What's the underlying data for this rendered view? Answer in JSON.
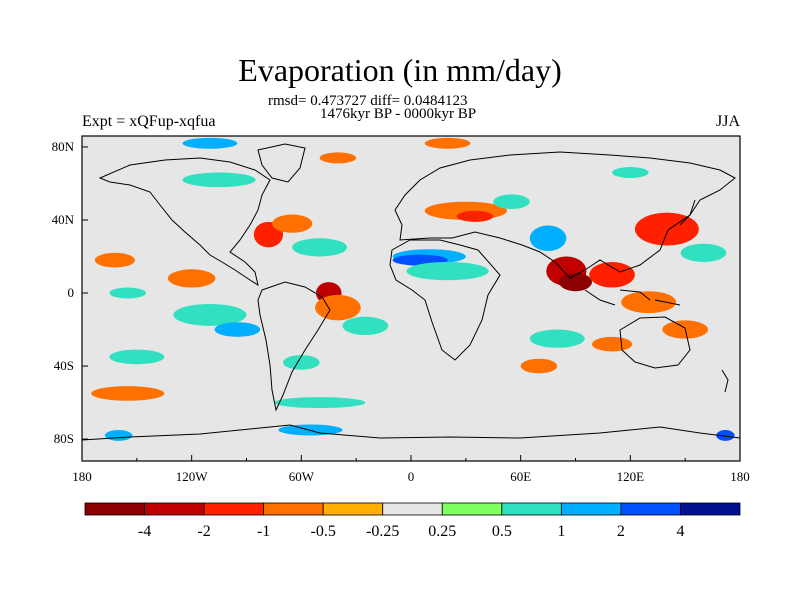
{
  "title": "Evaporation (in mm/day)",
  "stats_line": "rmsd= 0.473727 diff= 0.0484123",
  "period_line": "1476kyr BP - 0000kyr BP",
  "experiment_label": "Expt = xQFup-xqfua",
  "season_label": "JJA",
  "map": {
    "projection": "cylindrical equidistant",
    "lon_ticks": [
      "180",
      "120W",
      "60W",
      "0",
      "60E",
      "120E",
      "180"
    ],
    "lat_ticks": [
      "80N",
      "40N",
      "0",
      "40S",
      "80S"
    ],
    "ocean_neutral_color": "#e6e6e6",
    "coastline_color": "#000000"
  },
  "colorbar": {
    "boundaries": [
      "-4",
      "-2",
      "-1",
      "-0.5",
      "-0.25",
      "0.25",
      "0.5",
      "1",
      "2",
      "4"
    ],
    "colors": [
      "#8b0000",
      "#c00000",
      "#ff2000",
      "#ff7000",
      "#ffb000",
      "#e6e6e6",
      "#80ff60",
      "#30e0c0",
      "#00b0ff",
      "#0050ff",
      "#00108f"
    ]
  },
  "field_patches": [
    {
      "lon": -162,
      "lat": 18,
      "w": 22,
      "h": 8,
      "level": "-0.5"
    },
    {
      "lon": -120,
      "lat": 8,
      "w": 26,
      "h": 10,
      "level": "-0.5"
    },
    {
      "lon": -155,
      "lat": 0,
      "w": 20,
      "h": 6,
      "level": "0.5"
    },
    {
      "lon": -110,
      "lat": -12,
      "w": 40,
      "h": 12,
      "level": "0.5"
    },
    {
      "lon": -95,
      "lat": -20,
      "w": 25,
      "h": 8,
      "level": "1"
    },
    {
      "lon": -45,
      "lat": 0,
      "w": 14,
      "h": 12,
      "level": "-2"
    },
    {
      "lon": -40,
      "lat": -8,
      "w": 25,
      "h": 14,
      "level": "-0.5"
    },
    {
      "lon": -25,
      "lat": -18,
      "w": 25,
      "h": 10,
      "level": "0.5"
    },
    {
      "lon": -78,
      "lat": 32,
      "w": 16,
      "h": 14,
      "level": "-1"
    },
    {
      "lon": -65,
      "lat": 38,
      "w": 22,
      "h": 10,
      "level": "-0.5"
    },
    {
      "lon": -50,
      "lat": 25,
      "w": 30,
      "h": 10,
      "level": "0.5"
    },
    {
      "lon": 10,
      "lat": 20,
      "w": 40,
      "h": 8,
      "level": "1"
    },
    {
      "lon": 5,
      "lat": 18,
      "w": 30,
      "h": 6,
      "level": "2"
    },
    {
      "lon": 20,
      "lat": 12,
      "w": 45,
      "h": 10,
      "level": "0.5"
    },
    {
      "lon": 30,
      "lat": 45,
      "w": 45,
      "h": 10,
      "level": "-0.5"
    },
    {
      "lon": 35,
      "lat": 42,
      "w": 20,
      "h": 6,
      "level": "-1"
    },
    {
      "lon": 55,
      "lat": 50,
      "w": 20,
      "h": 8,
      "level": "0.5"
    },
    {
      "lon": 75,
      "lat": 30,
      "w": 20,
      "h": 14,
      "level": "1"
    },
    {
      "lon": 85,
      "lat": 12,
      "w": 22,
      "h": 16,
      "level": "-2"
    },
    {
      "lon": 90,
      "lat": 6,
      "w": 18,
      "h": 10,
      "level": "-4"
    },
    {
      "lon": 110,
      "lat": 10,
      "w": 25,
      "h": 14,
      "level": "-1"
    },
    {
      "lon": 130,
      "lat": -5,
      "w": 30,
      "h": 12,
      "level": "-0.5"
    },
    {
      "lon": 140,
      "lat": 35,
      "w": 35,
      "h": 18,
      "level": "-1"
    },
    {
      "lon": 160,
      "lat": 22,
      "w": 25,
      "h": 10,
      "level": "0.5"
    },
    {
      "lon": 80,
      "lat": -25,
      "w": 30,
      "h": 10,
      "level": "0.5"
    },
    {
      "lon": 110,
      "lat": -28,
      "w": 22,
      "h": 8,
      "level": "-0.5"
    },
    {
      "lon": 150,
      "lat": -20,
      "w": 25,
      "h": 10,
      "level": "-0.5"
    },
    {
      "lon": 70,
      "lat": -40,
      "w": 20,
      "h": 8,
      "level": "-0.5"
    },
    {
      "lon": -150,
      "lat": -35,
      "w": 30,
      "h": 8,
      "level": "0.5"
    },
    {
      "lon": -155,
      "lat": -55,
      "w": 40,
      "h": 8,
      "level": "-0.5"
    },
    {
      "lon": -50,
      "lat": -60,
      "w": 50,
      "h": 6,
      "level": "0.5"
    },
    {
      "lon": -55,
      "lat": -75,
      "w": 35,
      "h": 6,
      "level": "1"
    },
    {
      "lon": -160,
      "lat": -78,
      "w": 15,
      "h": 6,
      "level": "1"
    },
    {
      "lon": 172,
      "lat": -78,
      "w": 10,
      "h": 6,
      "level": "2"
    },
    {
      "lon": -105,
      "lat": 62,
      "w": 40,
      "h": 8,
      "level": "0.5"
    },
    {
      "lon": -40,
      "lat": 74,
      "w": 20,
      "h": 6,
      "level": "-0.5"
    },
    {
      "lon": -110,
      "lat": 82,
      "w": 30,
      "h": 6,
      "level": "1"
    },
    {
      "lon": 20,
      "lat": 82,
      "w": 25,
      "h": 6,
      "level": "-0.5"
    },
    {
      "lon": 120,
      "lat": 66,
      "w": 20,
      "h": 6,
      "level": "0.5"
    },
    {
      "lon": -60,
      "lat": -38,
      "w": 20,
      "h": 8,
      "level": "0.5"
    }
  ]
}
